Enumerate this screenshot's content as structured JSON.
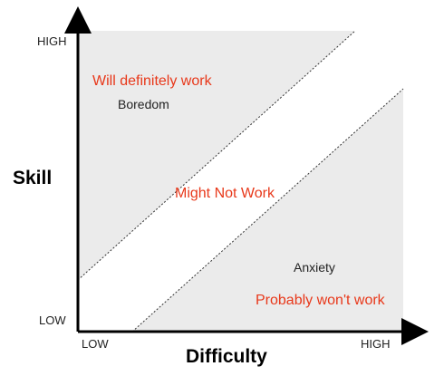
{
  "diagram": {
    "y_axis": {
      "title": "Skill",
      "high_label": "HIGH",
      "low_label": "LOW"
    },
    "x_axis": {
      "title": "Difficulty",
      "low_label": "LOW",
      "high_label": "HIGH"
    },
    "zones": [
      {
        "label": "Will definitely work",
        "state": "Boredom"
      },
      {
        "label": "Might Not Work"
      },
      {
        "label": "Probably won't work",
        "state": "Anxiety"
      }
    ],
    "colors": {
      "zone_fill": "#ebebeb",
      "zone_label": "#e8381a",
      "axis": "#000000",
      "boundary": "#333333"
    }
  }
}
